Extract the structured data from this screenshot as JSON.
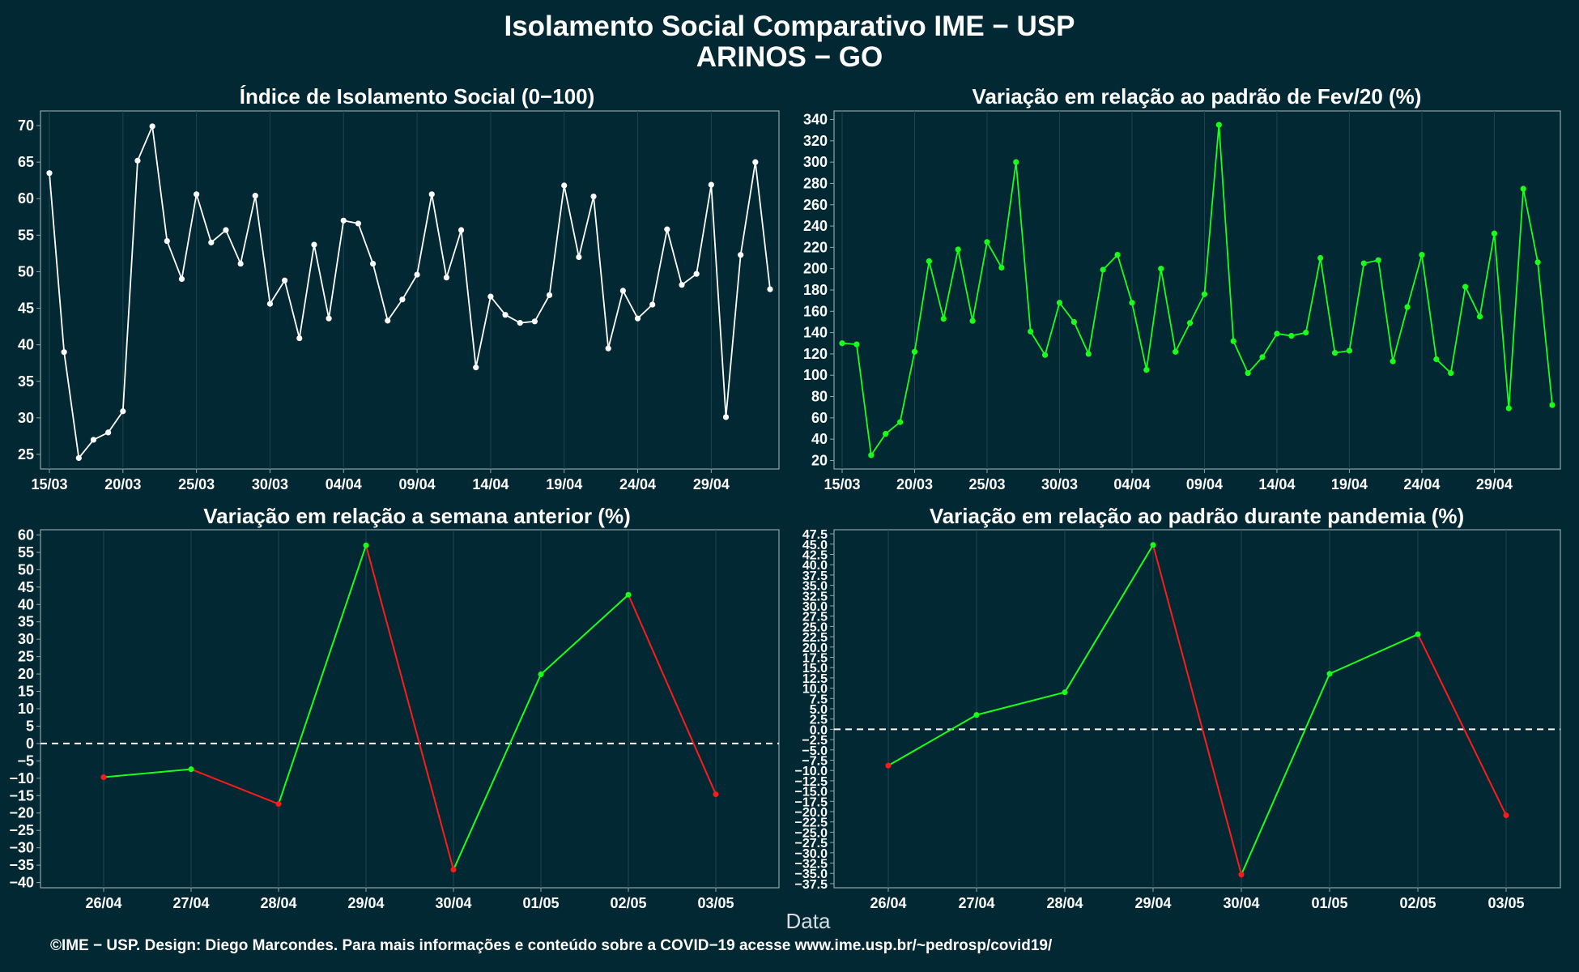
{
  "title_line1": "Isolamento Social Comparativo IME − USP",
  "title_line2": "ARINOS − GO",
  "footer": "©IME − USP. Design: Diego Marcondes. Para mais informações e conteúdo sobre a COVID−19 acesse www.ime.usp.br/~pedrosp/covid19/",
  "colors": {
    "background": "#022833",
    "white": "#ffffff",
    "green": "#1aff1a",
    "red": "#ff1a1a",
    "dash": "#ffffff"
  },
  "chart_data": [
    {
      "type": "line",
      "title": "Índice de Isolamento Social (0−100)",
      "color": "white",
      "x_start": "15/03",
      "x_tick_labels": [
        "15/03",
        "20/03",
        "25/03",
        "30/03",
        "04/04",
        "09/04",
        "14/04",
        "19/04",
        "24/04",
        "29/04"
      ],
      "x_tick_index": [
        0,
        5,
        10,
        15,
        20,
        25,
        30,
        35,
        40,
        45
      ],
      "ylim": [
        23,
        72
      ],
      "y_ticks": [
        25,
        30,
        35,
        40,
        45,
        50,
        55,
        60,
        65,
        70
      ],
      "values": [
        63.5,
        39,
        24.5,
        27,
        28,
        30.9,
        65.2,
        69.9,
        54.2,
        49,
        60.6,
        54,
        55.7,
        51.1,
        60.4,
        45.6,
        48.8,
        40.9,
        53.7,
        43.6,
        57,
        56.6,
        51.1,
        43.3,
        46.2,
        49.6,
        60.6,
        49.2,
        55.7,
        36.9,
        46.6,
        44.1,
        43,
        43.2,
        46.8,
        61.8,
        52,
        60.3,
        39.5,
        47.4,
        43.6,
        45.5,
        55.8,
        48.2,
        49.7,
        61.9,
        30.1,
        52.3,
        65,
        47.6
      ]
    },
    {
      "type": "line",
      "title": "Variação em relação ao padrão de Fev/20 (%)",
      "color": "green",
      "x_tick_labels": [
        "15/03",
        "20/03",
        "25/03",
        "30/03",
        "04/04",
        "09/04",
        "14/04",
        "19/04",
        "24/04",
        "29/04"
      ],
      "x_tick_index": [
        0,
        5,
        10,
        15,
        20,
        25,
        30,
        35,
        40,
        45
      ],
      "ylim": [
        12,
        348
      ],
      "y_ticks": [
        20,
        40,
        60,
        80,
        100,
        120,
        140,
        160,
        180,
        200,
        220,
        240,
        260,
        280,
        300,
        320,
        340
      ],
      "values": [
        130,
        129,
        25,
        45,
        56,
        122,
        207,
        153,
        218,
        151,
        225,
        201,
        300,
        141,
        119,
        168,
        150,
        120,
        199,
        213,
        168,
        105,
        200,
        122,
        149,
        176,
        335,
        132,
        102,
        117,
        139,
        137,
        140,
        210,
        121,
        123,
        205,
        208,
        113,
        164,
        213,
        115,
        102,
        183,
        155,
        233,
        69,
        275,
        206,
        72
      ]
    },
    {
      "type": "line",
      "title": "Variação em relação a semana anterior (%)",
      "colored_by_direction": true,
      "categories": [
        "26/04",
        "27/04",
        "28/04",
        "29/04",
        "30/04",
        "01/05",
        "02/05",
        "03/05"
      ],
      "ylim": [
        -41.5,
        61.5
      ],
      "y_ticks": [
        -40,
        -35,
        -30,
        -25,
        -20,
        -15,
        -10,
        -5,
        0,
        5,
        10,
        15,
        20,
        25,
        30,
        35,
        40,
        45,
        50,
        55,
        60
      ],
      "values": [
        -9.7,
        -7.4,
        -17.4,
        57,
        -36.3,
        19.9,
        42.8,
        -14.6
      ],
      "reference_line": 0
    },
    {
      "type": "line",
      "title": "Variação em relação ao padrão durante pandemia (%)",
      "colored_by_direction": true,
      "categories": [
        "26/04",
        "27/04",
        "28/04",
        "29/04",
        "30/04",
        "01/05",
        "02/05",
        "03/05"
      ],
      "ylim": [
        -38.5,
        48.5
      ],
      "y_ticks": [
        -37.5,
        -35,
        -32.5,
        -30,
        -27.5,
        -25,
        -22.5,
        -20,
        -17.5,
        -15,
        -12.5,
        -10,
        -7.5,
        -5,
        -2.5,
        0,
        2.5,
        5,
        7.5,
        10,
        12.5,
        15,
        17.5,
        20,
        22.5,
        25,
        27.5,
        30,
        32.5,
        35,
        37.5,
        40,
        42.5,
        45,
        47.5
      ],
      "values": [
        -8.8,
        3.5,
        9,
        44.8,
        -35.3,
        13.5,
        23.1,
        -20.9
      ],
      "reference_line": 0
    }
  ],
  "xlabel": "Data"
}
